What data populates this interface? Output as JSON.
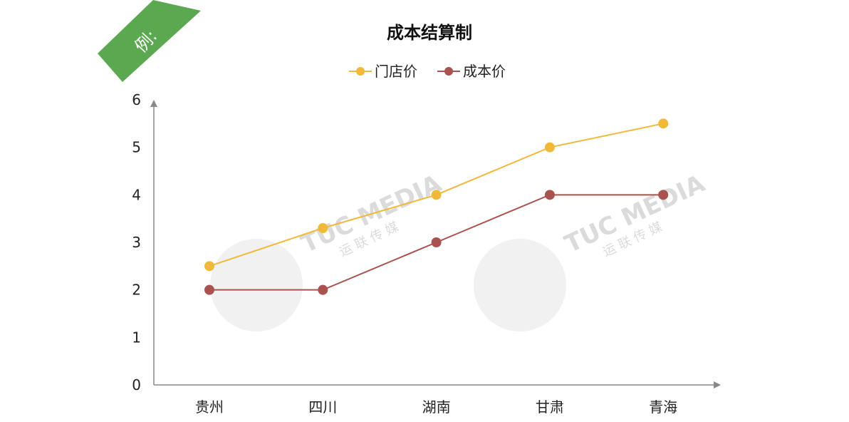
{
  "banner": {
    "label": "例:",
    "color": "#5aa84f"
  },
  "watermark": {
    "text": "TUC MEDIA",
    "subtext": "运 联 传 媒"
  },
  "chart_data": {
    "type": "line",
    "title": "成本结算制",
    "categories": [
      "贵州",
      "四川",
      "湖南",
      "甘肃",
      "青海"
    ],
    "series": [
      {
        "name": "门店价",
        "values": [
          2.5,
          3.3,
          4,
          5,
          5.5
        ],
        "color": "#f0b93a"
      },
      {
        "name": "成本价",
        "values": [
          2,
          2,
          3,
          4,
          4
        ],
        "color": "#a9524f"
      }
    ],
    "ylim": [
      0,
      6
    ],
    "yticks": [
      "0",
      "1",
      "2",
      "3",
      "4",
      "5",
      "6"
    ],
    "grid": false,
    "legend_position": "top"
  }
}
